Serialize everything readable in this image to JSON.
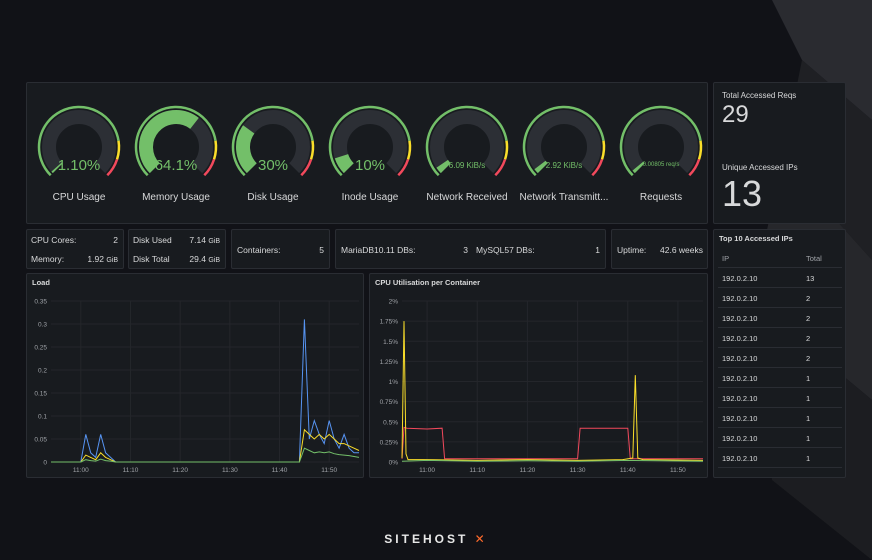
{
  "gauges": [
    {
      "label": "CPU Usage",
      "value": "1.10%",
      "fraction": 0.011,
      "size": "big"
    },
    {
      "label": "Memory Usage",
      "value": "64.1%",
      "fraction": 0.641,
      "size": "big"
    },
    {
      "label": "Disk Usage",
      "value": "30%",
      "fraction": 0.3,
      "size": "big"
    },
    {
      "label": "Inode Usage",
      "value": "10%",
      "fraction": 0.1,
      "size": "big"
    },
    {
      "label": "Network Received",
      "value": "6.09 KiB/s",
      "fraction": 0.04,
      "size": "small"
    },
    {
      "label": "Network Transmitt...",
      "value": "2.92 KiB/s",
      "fraction": 0.03,
      "size": "small"
    },
    {
      "label": "Requests",
      "value": "0.00805 req/s",
      "fraction": 0.02,
      "size": "tiny"
    }
  ],
  "stats": {
    "total_reqs_label": "Total Accessed Reqs",
    "total_reqs_value": "29",
    "unique_ips_label": "Unique Accessed IPs",
    "unique_ips_value": "13"
  },
  "info": {
    "cpu_cores_label": "CPU Cores:",
    "cpu_cores_value": "2",
    "memory_label": "Memory:",
    "memory_value": "1.92",
    "memory_unit": "GiB",
    "disk_used_label": "Disk Used",
    "disk_used_value": "7.14",
    "disk_used_unit": "GiB",
    "disk_total_label": "Disk Total",
    "disk_total_value": "29.4",
    "disk_total_unit": "GiB",
    "containers_label": "Containers:",
    "containers_value": "5",
    "mariadb_label": "MariaDB10.11 DBs:",
    "mariadb_value": "3",
    "mysql_label": "MySQL57 DBs:",
    "mysql_value": "1",
    "uptime_label": "Uptime:",
    "uptime_value": "42.6 weeks"
  },
  "top_ips": {
    "title": "Top 10 Accessed IPs",
    "col_ip": "IP",
    "col_total": "Total",
    "rows": [
      {
        "ip": "192.0.2.10",
        "total": "13"
      },
      {
        "ip": "192.0.2.10",
        "total": "2"
      },
      {
        "ip": "192.0.2.10",
        "total": "2"
      },
      {
        "ip": "192.0.2.10",
        "total": "2"
      },
      {
        "ip": "192.0.2.10",
        "total": "2"
      },
      {
        "ip": "192.0.2.10",
        "total": "1"
      },
      {
        "ip": "192.0.2.10",
        "total": "1"
      },
      {
        "ip": "192.0.2.10",
        "total": "1"
      },
      {
        "ip": "192.0.2.10",
        "total": "1"
      },
      {
        "ip": "192.0.2.10",
        "total": "1"
      }
    ]
  },
  "chart_data": [
    {
      "type": "line",
      "title": "Load",
      "x_ticks": [
        "11:00",
        "11:10",
        "11:20",
        "11:30",
        "11:40",
        "11:50"
      ],
      "y_ticks": [
        "0",
        "0.05",
        "0.1",
        "0.15",
        "0.2",
        "0.25",
        "0.3",
        "0.35"
      ],
      "ylim": [
        0,
        0.35
      ],
      "x_minutes_range": [
        -6,
        56
      ],
      "series": [
        {
          "color": "#5794f2",
          "x": [
            -6,
            0,
            1,
            2,
            3,
            4,
            5,
            6,
            7,
            40,
            44,
            45,
            46,
            47,
            48,
            49,
            50,
            51,
            52,
            53,
            54,
            55,
            56
          ],
          "y": [
            0,
            0,
            0.06,
            0.02,
            0.01,
            0.06,
            0.02,
            0.01,
            0,
            0,
            0,
            0.31,
            0.05,
            0.09,
            0.06,
            0.04,
            0.09,
            0.05,
            0.03,
            0.06,
            0.03,
            0.02,
            0.02
          ]
        },
        {
          "color": "#fade2a",
          "x": [
            -6,
            0,
            1,
            2,
            3,
            4,
            5,
            6,
            7,
            40,
            44,
            45,
            46,
            47,
            48,
            49,
            50,
            51,
            52,
            53,
            54,
            55,
            56
          ],
          "y": [
            0,
            0,
            0.015,
            0.01,
            0.005,
            0.02,
            0.01,
            0.005,
            0,
            0,
            0,
            0.07,
            0.06,
            0.05,
            0.06,
            0.05,
            0.06,
            0.05,
            0.04,
            0.04,
            0.035,
            0.03,
            0.025
          ]
        },
        {
          "color": "#73bf69",
          "x": [
            -6,
            0,
            1,
            2,
            3,
            4,
            5,
            6,
            7,
            40,
            44,
            45,
            46,
            47,
            48,
            49,
            50,
            51,
            52,
            53,
            54,
            55,
            56
          ],
          "y": [
            0,
            0,
            0.005,
            0.003,
            0.002,
            0.006,
            0.003,
            0.002,
            0,
            0,
            0,
            0.03,
            0.025,
            0.02,
            0.022,
            0.02,
            0.022,
            0.018,
            0.016,
            0.015,
            0.014,
            0.012,
            0.01
          ]
        }
      ]
    },
    {
      "type": "line",
      "title": "CPU Utilisation per Container",
      "x_ticks": [
        "11:00",
        "11:10",
        "11:20",
        "11:30",
        "11:40",
        "11:50"
      ],
      "y_ticks": [
        "0%",
        "0.25%",
        "0.5%",
        "0.75%",
        "1%",
        "1.25%",
        "1.5%",
        "1.75%",
        "2%"
      ],
      "ylim": [
        0,
        2
      ],
      "x_minutes_range": [
        -5,
        55
      ],
      "series": [
        {
          "color": "#f2495c",
          "x": [
            -5,
            -4.6,
            -4,
            0,
            3,
            3.5,
            30,
            30.5,
            40,
            40.5,
            55
          ],
          "y": [
            0.04,
            0.43,
            0.42,
            0.41,
            0.42,
            0.04,
            0.04,
            0.42,
            0.42,
            0.04,
            0.04
          ]
        },
        {
          "color": "#fade2a",
          "x": [
            -5,
            -4.6,
            -4.2,
            -3.8,
            0,
            10,
            20,
            30,
            39,
            41,
            41.5,
            42,
            43,
            55
          ],
          "y": [
            0.05,
            1.75,
            0.1,
            0.03,
            0.03,
            0.02,
            0.03,
            0.02,
            0.03,
            0.05,
            1.08,
            0.05,
            0.03,
            0.02
          ]
        },
        {
          "color": "#73bf69",
          "x": [
            -5,
            0,
            10,
            20,
            30,
            40,
            55
          ],
          "y": [
            0.01,
            0.02,
            0.01,
            0.015,
            0.01,
            0.02,
            0.01
          ]
        }
      ]
    }
  ],
  "brand": {
    "name": "SITEHOST",
    "mark": "✕"
  }
}
